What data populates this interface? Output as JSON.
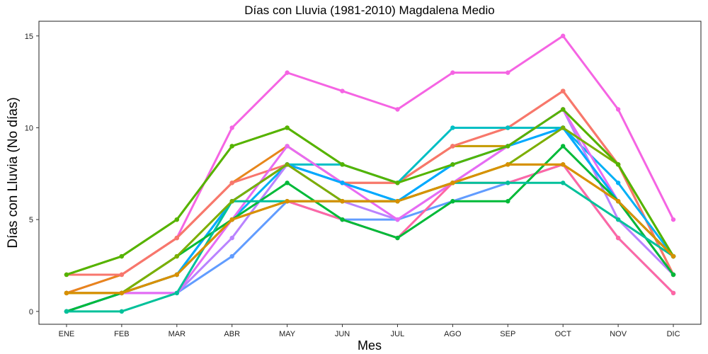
{
  "chart_data": {
    "type": "line",
    "title": "Días con Lluvia (1981-2010)  Magdalena Medio",
    "xlabel": "Mes",
    "ylabel": "Días con Lluvia (No días)",
    "categories": [
      "ENE",
      "FEB",
      "MAR",
      "ABR",
      "MAY",
      "JUN",
      "JUL",
      "AGO",
      "SEP",
      "OCT",
      "NOV",
      "DIC"
    ],
    "ylim": [
      -0.7,
      15.8
    ],
    "yticks": [
      0,
      5,
      10,
      15
    ],
    "grid": false,
    "legend": "none",
    "series": [
      {
        "color": "#F564E3",
        "values": [
          1,
          2,
          4,
          10,
          13,
          12,
          11,
          13,
          13,
          15,
          11,
          5
        ]
      },
      {
        "color": "#C49A00",
        "values": [
          2,
          3,
          5,
          9,
          10,
          8,
          7,
          9,
          9,
          11,
          8,
          2
        ]
      },
      {
        "color": "#E7861B",
        "values": [
          1,
          2,
          4,
          7,
          9,
          7,
          7,
          9,
          10,
          12,
          8,
          2
        ]
      },
      {
        "color": "#F8766D",
        "values": [
          2,
          2,
          4,
          7,
          8,
          7,
          7,
          9,
          10,
          12,
          8,
          2
        ]
      },
      {
        "color": "#00BFC4",
        "values": [
          0,
          1,
          2,
          6,
          8,
          8,
          7,
          10,
          10,
          10,
          6,
          3
        ]
      },
      {
        "color": "#00B0F6",
        "values": [
          0,
          1,
          2,
          5,
          8,
          7,
          6,
          8,
          9,
          10,
          7,
          3
        ]
      },
      {
        "color": "#619CFF",
        "values": [
          0,
          1,
          1,
          3,
          6,
          5,
          5,
          6,
          7,
          8,
          4,
          1
        ]
      },
      {
        "color": "#B983FF",
        "values": [
          0,
          1,
          1,
          4,
          8,
          6,
          5,
          7,
          9,
          11,
          5,
          2
        ]
      },
      {
        "color": "#E76BF3",
        "values": [
          1,
          1,
          1,
          5,
          9,
          7,
          5,
          7,
          9,
          11,
          6,
          2
        ]
      },
      {
        "color": "#FF67A4",
        "values": [
          1,
          1,
          2,
          5,
          6,
          5,
          4,
          7,
          7,
          8,
          4,
          1
        ]
      },
      {
        "color": "#00A9FF",
        "values": [
          0,
          1,
          2,
          6,
          8,
          7,
          6,
          8,
          9,
          10,
          6,
          3
        ]
      },
      {
        "color": "#00BA38",
        "values": [
          0,
          1,
          3,
          5,
          7,
          5,
          4,
          6,
          6,
          9,
          6,
          2
        ]
      },
      {
        "color": "#00C19A",
        "values": [
          0,
          0,
          1,
          6,
          6,
          6,
          6,
          7,
          7,
          7,
          5,
          3
        ]
      },
      {
        "color": "#7CAE00",
        "values": [
          1,
          1,
          3,
          6,
          8,
          6,
          6,
          7,
          8,
          10,
          8,
          3
        ]
      },
      {
        "color": "#A3A500",
        "values": [
          1,
          1,
          2,
          5,
          6,
          6,
          6,
          7,
          8,
          8,
          6,
          3
        ]
      },
      {
        "color": "#53B400",
        "values": [
          2,
          3,
          5,
          9,
          10,
          8,
          7,
          8,
          9,
          11,
          8,
          3
        ]
      },
      {
        "color": "#D89000",
        "values": [
          1,
          1,
          2,
          5,
          6,
          6,
          6,
          7,
          8,
          8,
          6,
          3
        ]
      }
    ]
  }
}
